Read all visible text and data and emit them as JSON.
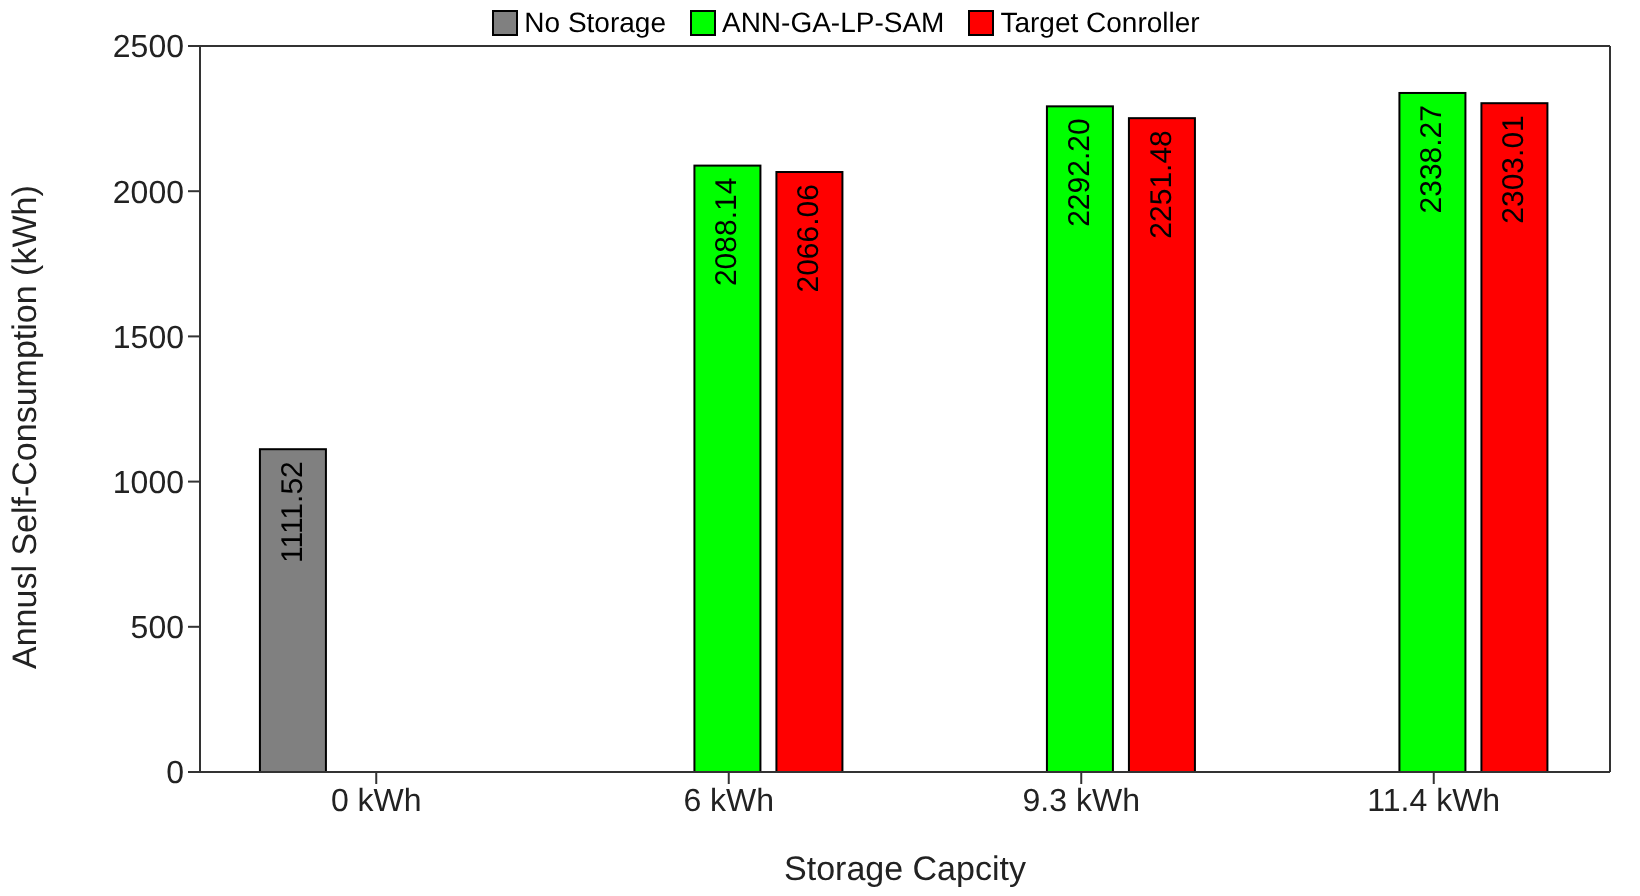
{
  "chart_data": {
    "type": "bar",
    "xlabel": "Storage Capcity",
    "ylabel": "Annusl Self-Consumption (kWh)",
    "categories": [
      "0 kWh",
      "6 kWh",
      "9.3 kWh",
      "11.4 kWh"
    ],
    "series": [
      {
        "name": "No Storage",
        "color": "#808080",
        "values": [
          1111.52,
          null,
          null,
          null
        ],
        "value_labels": [
          "1111.52",
          null,
          null,
          null
        ]
      },
      {
        "name": "ANN-GA-LP-SAM",
        "color": "#00ff00",
        "values": [
          0,
          2088.14,
          2292.2,
          2338.27
        ],
        "value_labels": [
          null,
          "2088.14",
          "2292.20",
          "2338.27"
        ]
      },
      {
        "name": "Target Conroller",
        "color": "#ff0000",
        "values": [
          0,
          2066.06,
          2251.48,
          2303.01
        ],
        "value_labels": [
          null,
          "2066.06",
          "2251.48",
          "2303.01"
        ]
      }
    ],
    "ylim": [
      0,
      2500
    ],
    "yticks": [
      0,
      500,
      1000,
      1500,
      2000,
      2500
    ],
    "legend": "top",
    "grid": false
  }
}
